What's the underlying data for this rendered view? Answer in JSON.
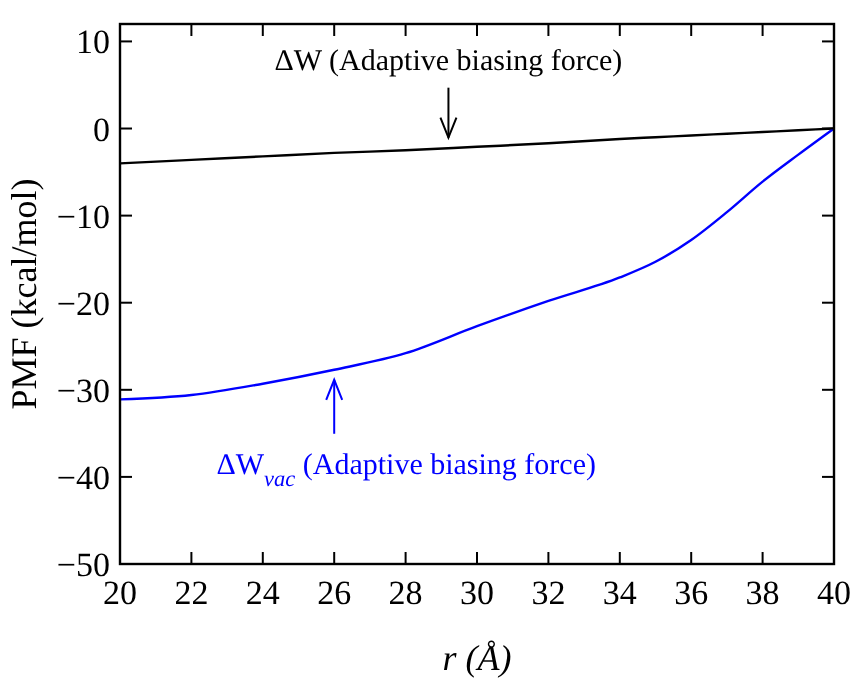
{
  "chart_data": {
    "type": "line",
    "xlabel": "r (Å)",
    "ylabel": "PMF (kcal/mol)",
    "x": [
      20,
      22,
      24,
      26,
      28,
      30,
      32,
      34,
      35,
      36,
      37,
      38,
      39,
      40
    ],
    "xlim": [
      20,
      40
    ],
    "ylim": [
      -50,
      12
    ],
    "xticks": [
      20,
      22,
      24,
      26,
      28,
      30,
      32,
      34,
      36,
      38,
      40
    ],
    "yticks": [
      -50,
      -40,
      -30,
      -20,
      -10,
      0,
      10
    ],
    "grid": false,
    "series": [
      {
        "color": "#000000",
        "values": [
          -4.0,
          -3.6,
          -3.2,
          -2.8,
          -2.5,
          -2.1,
          -1.7,
          -1.2,
          -1.0,
          -0.8,
          -0.6,
          -0.4,
          -0.2,
          0
        ]
      },
      {
        "color": "#0000ff",
        "values": [
          -31.1,
          -30.6,
          -29.3,
          -27.7,
          -25.8,
          -22.7,
          -19.8,
          -17.1,
          -15.3,
          -12.8,
          -9.6,
          -6.1,
          -3.0,
          0
        ]
      }
    ],
    "annotations": [
      {
        "text": "ΔW (Adaptive biasing force)",
        "x": 29.2,
        "y": -2.2
      },
      {
        "text": "ΔW$_{vac}$ (Adaptive biasing force)",
        "x": 26,
        "y": -27.7
      }
    ]
  }
}
